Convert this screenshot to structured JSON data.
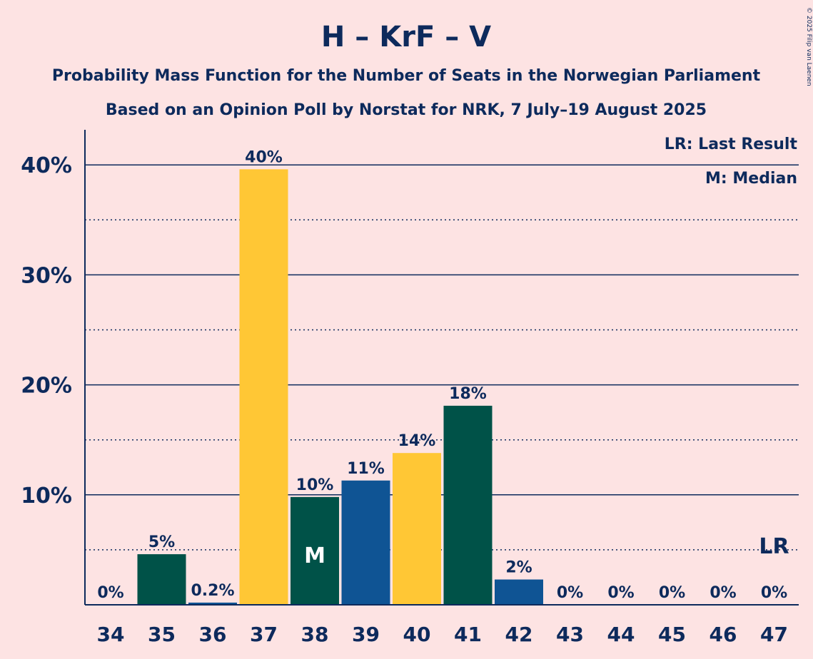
{
  "header": {
    "title": "H – KrF – V",
    "subtitle1": "Probability Mass Function for the Number of Seats in the Norwegian Parliament",
    "subtitle2": "Based on an Opinion Poll by Norstat for NRK, 7 July–19 August 2025"
  },
  "copyright": "© 2025 Filip van Laenen",
  "legend": {
    "last_result": "LR: Last Result",
    "median": "M: Median"
  },
  "colors": {
    "background": "#fde3e3",
    "text": "#0d2a5c",
    "H": "#0f5494",
    "KrF": "#ffc735",
    "V": "#005248"
  },
  "chart_data": {
    "type": "bar",
    "categories": [
      "34",
      "35",
      "36",
      "37",
      "38",
      "39",
      "40",
      "41",
      "42",
      "43",
      "44",
      "45",
      "46",
      "47"
    ],
    "values": [
      0,
      4.6,
      0.2,
      39.6,
      9.8,
      11.3,
      13.8,
      18.1,
      2.3,
      0,
      0,
      0,
      0,
      0
    ],
    "labels": [
      "0%",
      "5%",
      "0.2%",
      "40%",
      "10%",
      "11%",
      "14%",
      "18%",
      "2%",
      "0%",
      "0%",
      "0%",
      "0%",
      "0%"
    ],
    "bar_colors": [
      "#005248",
      "#005248",
      "#0f5494",
      "#ffc735",
      "#005248",
      "#0f5494",
      "#ffc735",
      "#005248",
      "#0f5494",
      "#ffc735",
      "#005248",
      "#0f5494",
      "#ffc735",
      "#005248"
    ],
    "ylim": [
      0,
      43
    ],
    "yticks": [
      10,
      20,
      30,
      40
    ],
    "ytick_labels": [
      "10%",
      "20%",
      "30%",
      "40%"
    ],
    "minor_yticks": [
      5,
      15,
      25,
      35
    ],
    "median_seat": "38",
    "median_marker": "M",
    "last_result_seat": "47",
    "last_result_marker": "LR",
    "grid": true,
    "legend_position": "top-right"
  }
}
